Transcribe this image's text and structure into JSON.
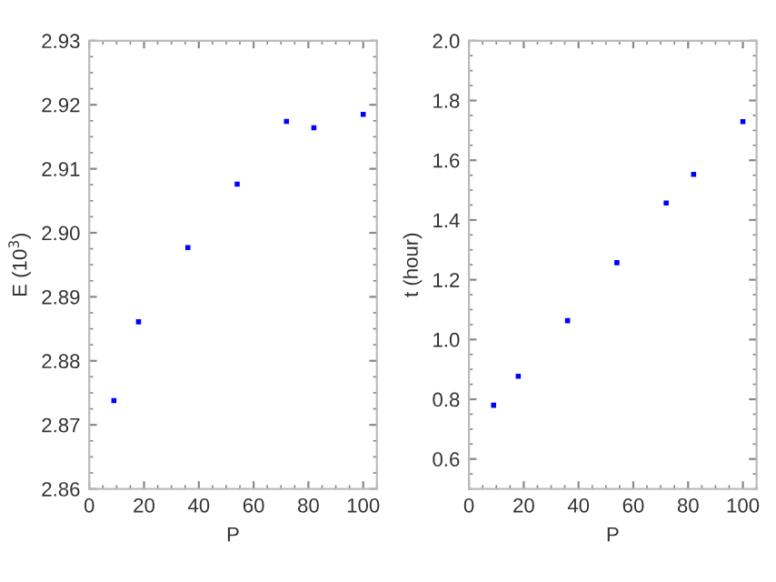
{
  "chart_data": [
    {
      "type": "scatter",
      "xlabel": "P",
      "ylabel": "E (10$^{3}$)",
      "x": [
        9,
        18,
        36,
        54,
        72,
        82,
        100
      ],
      "series": [
        {
          "color": "#0000ff",
          "values": [
            2.8738,
            2.8861,
            2.8977,
            2.9076,
            2.9174,
            2.9164,
            2.9185
          ]
        }
      ],
      "xlim": [
        0,
        105
      ],
      "xticks": [
        0,
        20,
        40,
        60,
        80,
        100
      ],
      "ylim": [
        2.86,
        2.93
      ],
      "yticks": [
        {
          "value": 2.86,
          "label": "2.86"
        },
        {
          "value": 2.87,
          "label": "2.87"
        },
        {
          "value": 2.88,
          "label": "2.88"
        },
        {
          "value": 2.89,
          "label": "2.89"
        },
        {
          "value": 2.9,
          "label": "2.90"
        },
        {
          "value": 2.91,
          "label": "2.91"
        },
        {
          "value": 2.92,
          "label": "2.92"
        },
        {
          "value": 2.93,
          "label": "2.93"
        }
      ],
      "marker": "square",
      "grid": false,
      "legend": false
    },
    {
      "type": "scatter",
      "xlabel": "P",
      "ylabel": "t (hour)",
      "x": [
        9,
        18,
        36,
        54,
        72,
        82,
        100
      ],
      "series": [
        {
          "color": "#0000ff",
          "values": [
            0.78,
            0.877,
            1.063,
            1.257,
            1.457,
            1.553,
            1.729
          ]
        }
      ],
      "xlim": [
        0,
        105
      ],
      "xticks": [
        0,
        20,
        40,
        60,
        80,
        100
      ],
      "ylim": [
        0.5,
        2.0
      ],
      "yticks": [
        {
          "value": 0.6,
          "label": "0.6"
        },
        {
          "value": 0.8,
          "label": "0.8"
        },
        {
          "value": 1.0,
          "label": "1.0"
        },
        {
          "value": 1.2,
          "label": "1.2"
        },
        {
          "value": 1.4,
          "label": "1.4"
        },
        {
          "value": 1.6,
          "label": "1.6"
        },
        {
          "value": 1.8,
          "label": "1.8"
        },
        {
          "value": 2.0,
          "label": "2.0"
        }
      ],
      "marker": "square",
      "grid": false,
      "legend": false
    }
  ]
}
